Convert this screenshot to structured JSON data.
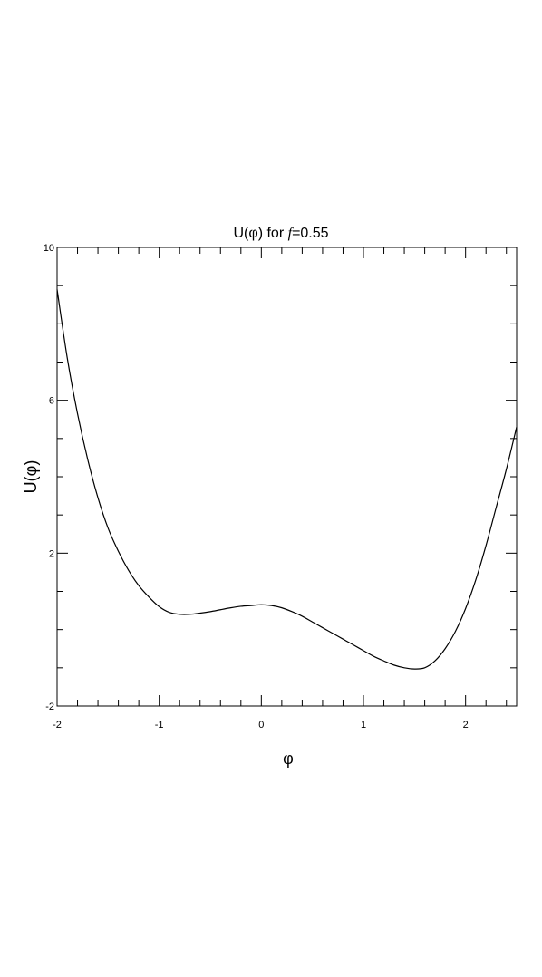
{
  "chart_data": {
    "type": "line",
    "title": {
      "prefix": "U(φ) for ",
      "variable": "f",
      "suffix": "=0.55"
    },
    "xlabel": "φ",
    "ylabel": "U(φ)",
    "xlim": [
      -2,
      2.5
    ],
    "ylim": [
      -2,
      10
    ],
    "xticks": [
      {
        "value": -2,
        "label": "-2"
      },
      {
        "value": -1,
        "label": "-1"
      },
      {
        "value": 0,
        "label": "0"
      },
      {
        "value": 1,
        "label": "1"
      },
      {
        "value": 2,
        "label": "2"
      }
    ],
    "yticks": [
      {
        "value": -2,
        "label": "-2"
      },
      {
        "value": 2,
        "label": "2"
      },
      {
        "value": 6,
        "label": "6"
      },
      {
        "value": 10,
        "label": "10"
      }
    ],
    "x_minor_step": 0.2,
    "y_minor_step": 1,
    "grid": false,
    "line_color": "#000000",
    "series": [
      {
        "x": [
          -2.0,
          -1.9,
          -1.8,
          -1.7,
          -1.6,
          -1.5,
          -1.4,
          -1.3,
          -1.2,
          -1.1,
          -1.0,
          -0.9,
          -0.8,
          -0.7,
          -0.6,
          -0.5,
          -0.4,
          -0.3,
          -0.2,
          -0.1,
          0.0,
          0.1,
          0.2,
          0.3,
          0.4,
          0.5,
          0.6,
          0.7,
          0.8,
          0.9,
          1.0,
          1.1,
          1.2,
          1.3,
          1.4,
          1.5,
          1.6,
          1.7,
          1.8,
          1.9,
          2.0,
          2.1,
          2.2,
          2.3,
          2.4,
          2.5
        ],
        "values": [
          8.9,
          7.1,
          5.65,
          4.45,
          3.45,
          2.65,
          2.05,
          1.55,
          1.15,
          0.85,
          0.6,
          0.45,
          0.4,
          0.4,
          0.43,
          0.47,
          0.52,
          0.57,
          0.61,
          0.63,
          0.65,
          0.63,
          0.57,
          0.47,
          0.35,
          0.2,
          0.05,
          -0.1,
          -0.25,
          -0.4,
          -0.55,
          -0.7,
          -0.82,
          -0.93,
          -1.0,
          -1.03,
          -1.0,
          -0.82,
          -0.5,
          -0.05,
          0.55,
          1.3,
          2.2,
          3.2,
          4.2,
          5.3
        ]
      }
    ]
  }
}
